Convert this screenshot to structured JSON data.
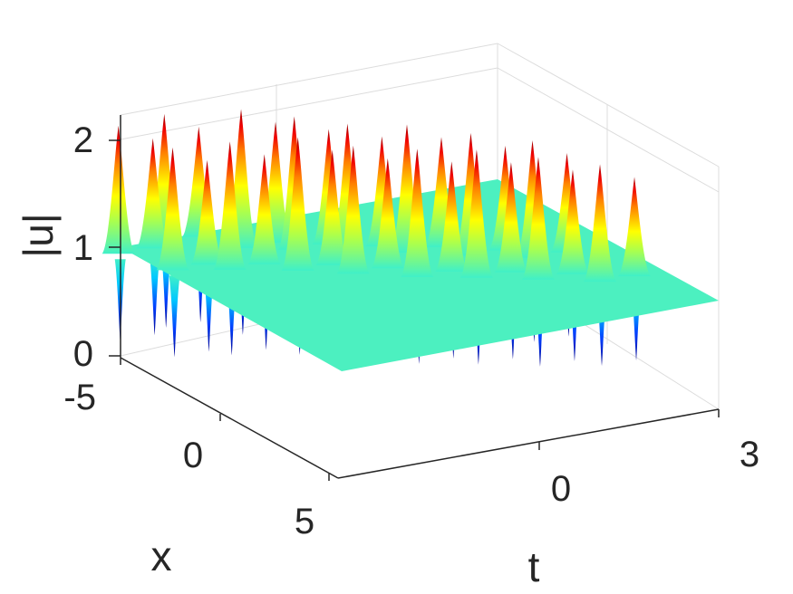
{
  "chart_data": {
    "type": "surface",
    "title": "",
    "xlabel": "t",
    "ylabel": "x",
    "zlabel": "|u|",
    "t_range": [
      -3,
      3
    ],
    "x_range": [
      -5,
      5
    ],
    "z_range": [
      0,
      2.2
    ],
    "t_ticks": [
      "0",
      "3"
    ],
    "x_ticks": [
      "-5",
      "0",
      "5"
    ],
    "z_ticks": [
      "0",
      "1",
      "2"
    ],
    "background_level": 1,
    "colormap": "jet",
    "grid": true,
    "features": [
      {
        "t": -2.9,
        "x": -4.6,
        "height": 2.2,
        "dip": 0.0
      },
      {
        "t": -2.6,
        "x": -3.0,
        "height": 2.15,
        "dip": 0.0
      },
      {
        "t": -2.1,
        "x": -4.8,
        "height": 2.2,
        "dip": 0.05
      },
      {
        "t": -1.9,
        "x": -2.4,
        "height": 2.2,
        "dip": 0.05
      },
      {
        "t": -1.3,
        "x": -3.6,
        "height": 2.3,
        "dip": 0.0
      },
      {
        "t": -1.1,
        "x": -1.6,
        "height": 2.25,
        "dip": 0.1
      },
      {
        "t": -0.7,
        "x": -2.9,
        "height": 2.25,
        "dip": 0.0
      },
      {
        "t": -0.5,
        "x": -0.8,
        "height": 2.2,
        "dip": 0.0
      },
      {
        "t": -0.1,
        "x": -2.2,
        "height": 2.2,
        "dip": 0.0
      },
      {
        "t": 0.2,
        "x": 0.1,
        "height": 2.2,
        "dip": 0.0
      },
      {
        "t": 0.6,
        "x": -1.5,
        "height": 2.2,
        "dip": 0.0
      },
      {
        "t": 0.9,
        "x": 0.8,
        "height": 2.2,
        "dip": 0.0
      },
      {
        "t": 1.3,
        "x": -0.6,
        "height": 2.15,
        "dip": 0.0
      },
      {
        "t": 1.6,
        "x": 1.6,
        "height": 2.15,
        "dip": 0.0
      },
      {
        "t": 2.0,
        "x": 0.2,
        "height": 2.1,
        "dip": 0.1
      },
      {
        "t": 2.3,
        "x": 2.4,
        "height": 2.1,
        "dip": 0.1
      }
    ],
    "colors": {
      "background_surface": "#4cf0c0",
      "peak": "#b00000",
      "trough": "#0000a0",
      "axis": "#262626",
      "grid": "#dcdcdc"
    }
  }
}
